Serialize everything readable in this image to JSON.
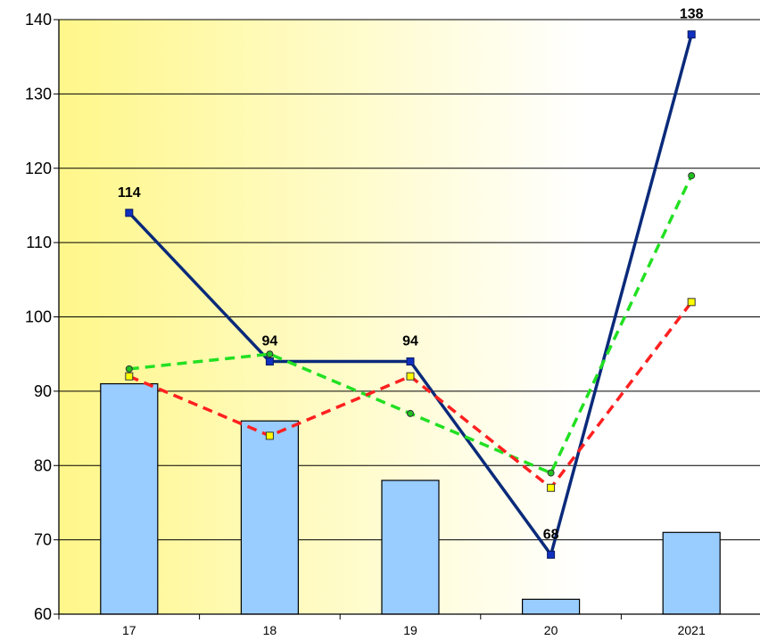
{
  "chart_data": {
    "type": "bar",
    "title": "",
    "xlabel": "",
    "ylabel": "",
    "categories": [
      "17",
      "18",
      "19",
      "20",
      "2021"
    ],
    "ylim": [
      60,
      140
    ],
    "yticks": [
      "60",
      "70",
      "80",
      "90",
      "100",
      "110",
      "120",
      "130",
      "140"
    ],
    "grid": true,
    "bars": {
      "values": [
        91,
        86,
        78,
        62,
        71
      ],
      "color": "#99CCFF"
    },
    "series": [
      {
        "values": [
          114,
          94,
          94,
          68,
          138
        ],
        "color": "#0A2A7A",
        "style": "solid",
        "marker": "square-blue",
        "labels": [
          "114",
          "94",
          "94",
          "68",
          "138"
        ]
      },
      {
        "values": [
          93,
          95,
          87,
          79,
          119
        ],
        "color": "#22E022",
        "style": "dashed",
        "marker": "circle-green"
      },
      {
        "values": [
          92,
          84,
          92,
          77,
          102
        ],
        "color": "#FF2020",
        "style": "dashed",
        "marker": "square-yellow"
      }
    ],
    "background_gradient": [
      "#FFF78A",
      "#FFFFFF"
    ]
  }
}
